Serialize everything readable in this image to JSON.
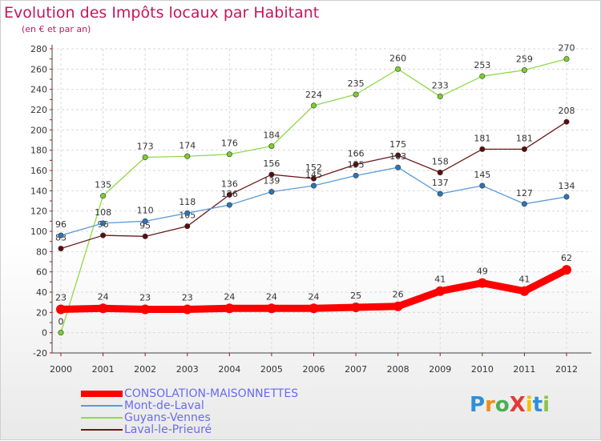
{
  "chart_data": {
    "type": "line",
    "title": "Evolution des Impôts locaux par Habitant",
    "subtitle": "(en € et par an)",
    "xlabel": "",
    "ylabel": "",
    "ylim": [
      -20,
      280
    ],
    "yticks": [
      -20,
      0,
      20,
      40,
      60,
      80,
      100,
      120,
      140,
      160,
      180,
      200,
      220,
      240,
      260,
      280
    ],
    "categories": [
      "2000",
      "2001",
      "2002",
      "2003",
      "2004",
      "2005",
      "2006",
      "2007",
      "2008",
      "2009",
      "2010",
      "2011",
      "2012"
    ],
    "grid": true,
    "legend_position": "bottom-left",
    "series": [
      {
        "name": "CONSOLATION-MAISONNETTES",
        "color": "#ff0000",
        "values": [
          23,
          24,
          23,
          23,
          24,
          24,
          24,
          25,
          26,
          41,
          49,
          41,
          62
        ]
      },
      {
        "name": "Mont-de-Laval",
        "color": "#5b9bd5",
        "values": [
          96,
          108,
          110,
          118,
          126,
          139,
          145,
          155,
          163,
          137,
          145,
          127,
          134
        ]
      },
      {
        "name": "Guyans-Vennes",
        "color": "#8fd94a",
        "values": [
          0,
          135,
          173,
          174,
          176,
          184,
          224,
          235,
          260,
          233,
          253,
          259,
          270
        ]
      },
      {
        "name": "Laval-le-Prieuré",
        "color": "#6b1a1a",
        "values": [
          83,
          96,
          95,
          105,
          136,
          156,
          152,
          166,
          175,
          158,
          181,
          181,
          208
        ]
      }
    ]
  },
  "logo": {
    "text": "ProXiti"
  }
}
